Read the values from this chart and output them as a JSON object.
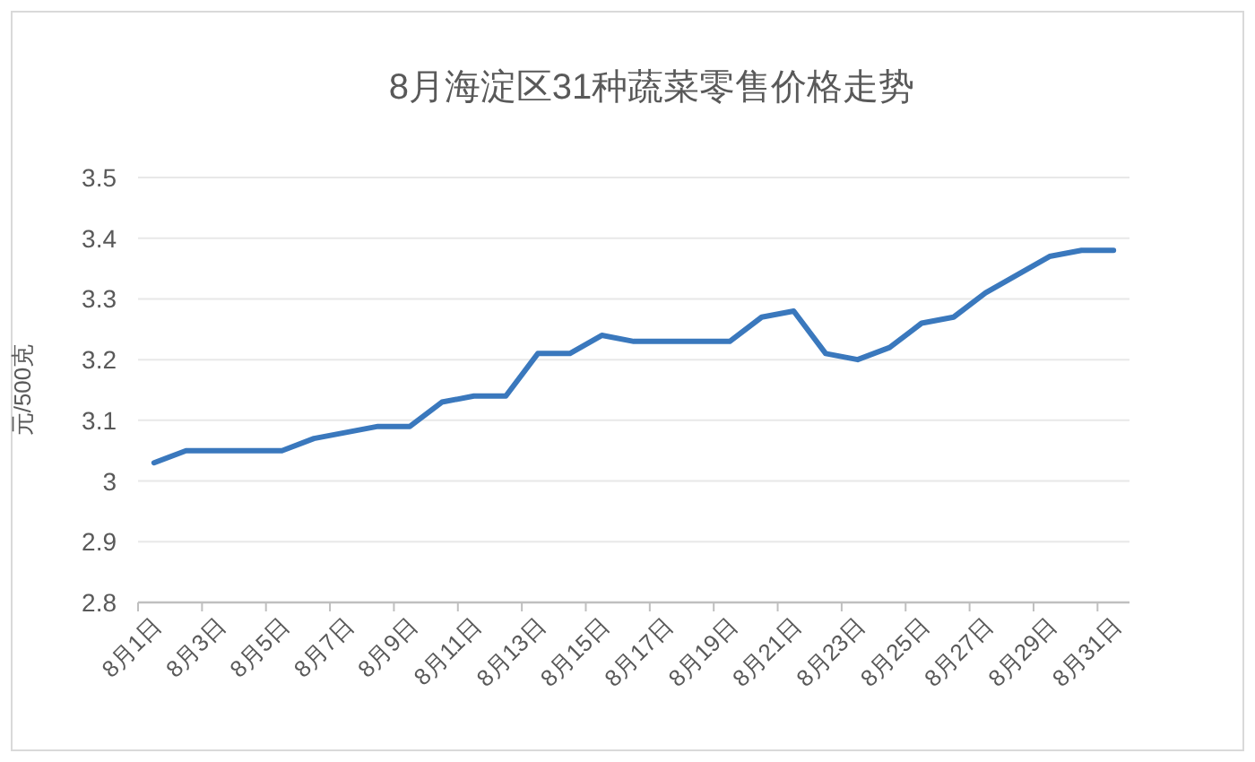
{
  "chart_data": {
    "type": "line",
    "title": "8月海淀区31种蔬菜零售价格走势",
    "ylabel": "元/500克",
    "categories": [
      "8月1日",
      null,
      "8月3日",
      null,
      "8月5日",
      null,
      "8月7日",
      null,
      "8月9日",
      null,
      "8月11日",
      null,
      "8月13日",
      null,
      "8月15日",
      null,
      "8月17日",
      null,
      "8月19日",
      null,
      "8月21日",
      null,
      "8月23日",
      null,
      "8月25日",
      null,
      "8月27日",
      null,
      "8月29日",
      null,
      "8月31日"
    ],
    "series": [
      {
        "color": "#3a78bd",
        "values": [
          3.03,
          3.05,
          3.05,
          3.05,
          3.05,
          3.07,
          3.08,
          3.09,
          3.09,
          3.13,
          3.14,
          3.14,
          3.21,
          3.21,
          3.24,
          3.23,
          3.23,
          3.23,
          3.23,
          3.27,
          3.28,
          3.21,
          3.2,
          3.22,
          3.26,
          3.27,
          3.31,
          3.34,
          3.37,
          3.38,
          3.38
        ]
      }
    ],
    "ylim": [
      2.8,
      3.5
    ],
    "yticks": [
      {
        "value": 2.8,
        "label": "2.8"
      },
      {
        "value": 2.9,
        "label": "2.9"
      },
      {
        "value": 3,
        "label": "3"
      },
      {
        "value": 3.1,
        "label": "3.1"
      },
      {
        "value": 3.2,
        "label": "3.2"
      },
      {
        "value": 3.3,
        "label": "3.3"
      },
      {
        "value": 3.4,
        "label": "3.4"
      },
      {
        "value": 3.5,
        "label": "3.5"
      }
    ],
    "grid": "y",
    "marker": "none",
    "line_style": "solid"
  }
}
